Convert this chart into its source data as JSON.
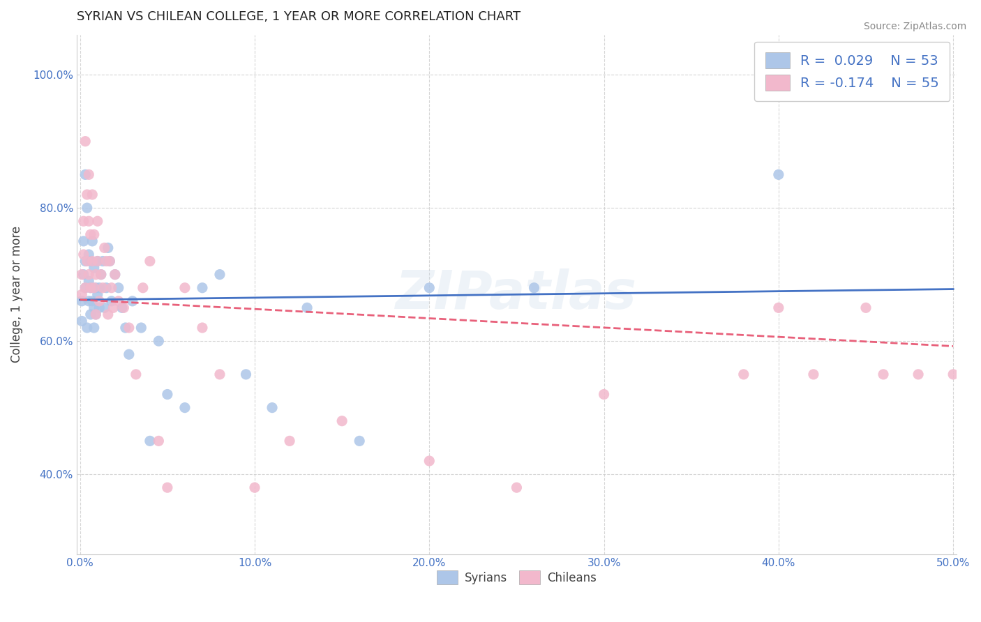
{
  "title": "SYRIAN VS CHILEAN COLLEGE, 1 YEAR OR MORE CORRELATION CHART",
  "source": "Source: ZipAtlas.com",
  "xlabel": "",
  "ylabel": "College, 1 year or more",
  "xlim": [
    -0.002,
    0.502
  ],
  "ylim": [
    0.28,
    1.06
  ],
  "xtick_labels": [
    "0.0%",
    "10.0%",
    "20.0%",
    "30.0%",
    "40.0%",
    "50.0%"
  ],
  "xtick_vals": [
    0.0,
    0.1,
    0.2,
    0.3,
    0.4,
    0.5
  ],
  "ytick_labels": [
    "40.0%",
    "60.0%",
    "80.0%",
    "100.0%"
  ],
  "ytick_vals": [
    0.4,
    0.6,
    0.8,
    1.0
  ],
  "blue_color": "#adc6e8",
  "pink_color": "#f2b8cc",
  "blue_line_color": "#4472c4",
  "pink_line_color": "#e8607a",
  "legend_R1": "R =  0.029",
  "legend_N1": "N = 53",
  "legend_R2": "R = -0.174",
  "legend_N2": "N = 55",
  "legend_label1": "Syrians",
  "legend_label2": "Chileans",
  "watermark": "ZIPatlas",
  "blue_R": 0.029,
  "pink_R": -0.174,
  "blue_N": 53,
  "pink_N": 55,
  "syrians_x": [
    0.001,
    0.001,
    0.002,
    0.002,
    0.003,
    0.003,
    0.003,
    0.004,
    0.004,
    0.005,
    0.005,
    0.005,
    0.006,
    0.006,
    0.006,
    0.007,
    0.007,
    0.008,
    0.008,
    0.008,
    0.009,
    0.009,
    0.01,
    0.01,
    0.011,
    0.011,
    0.012,
    0.013,
    0.014,
    0.015,
    0.016,
    0.017,
    0.018,
    0.02,
    0.022,
    0.024,
    0.026,
    0.028,
    0.03,
    0.035,
    0.04,
    0.045,
    0.05,
    0.06,
    0.07,
    0.08,
    0.095,
    0.11,
    0.13,
    0.16,
    0.2,
    0.26,
    0.4
  ],
  "syrians_y": [
    0.66,
    0.63,
    0.7,
    0.75,
    0.85,
    0.68,
    0.72,
    0.8,
    0.62,
    0.66,
    0.73,
    0.69,
    0.64,
    0.72,
    0.68,
    0.75,
    0.66,
    0.71,
    0.65,
    0.62,
    0.68,
    0.64,
    0.72,
    0.67,
    0.65,
    0.68,
    0.7,
    0.72,
    0.65,
    0.68,
    0.74,
    0.72,
    0.66,
    0.7,
    0.68,
    0.65,
    0.62,
    0.58,
    0.66,
    0.62,
    0.45,
    0.6,
    0.52,
    0.5,
    0.68,
    0.7,
    0.55,
    0.5,
    0.65,
    0.45,
    0.68,
    0.68,
    0.85
  ],
  "chileans_x": [
    0.001,
    0.001,
    0.002,
    0.002,
    0.003,
    0.003,
    0.004,
    0.004,
    0.005,
    0.005,
    0.005,
    0.006,
    0.006,
    0.007,
    0.007,
    0.008,
    0.008,
    0.009,
    0.009,
    0.01,
    0.01,
    0.011,
    0.012,
    0.013,
    0.014,
    0.015,
    0.016,
    0.017,
    0.018,
    0.019,
    0.02,
    0.022,
    0.025,
    0.028,
    0.032,
    0.036,
    0.04,
    0.045,
    0.05,
    0.06,
    0.07,
    0.08,
    0.1,
    0.12,
    0.15,
    0.2,
    0.25,
    0.3,
    0.38,
    0.4,
    0.42,
    0.45,
    0.46,
    0.48,
    0.5
  ],
  "chileans_y": [
    0.7,
    0.67,
    0.78,
    0.73,
    0.9,
    0.68,
    0.82,
    0.72,
    0.78,
    0.7,
    0.85,
    0.76,
    0.68,
    0.82,
    0.72,
    0.76,
    0.68,
    0.7,
    0.64,
    0.72,
    0.78,
    0.66,
    0.7,
    0.68,
    0.74,
    0.72,
    0.64,
    0.72,
    0.68,
    0.65,
    0.7,
    0.66,
    0.65,
    0.62,
    0.55,
    0.68,
    0.72,
    0.45,
    0.38,
    0.68,
    0.62,
    0.55,
    0.38,
    0.45,
    0.48,
    0.42,
    0.38,
    0.52,
    0.55,
    0.65,
    0.55,
    0.65,
    0.55,
    0.55,
    0.55
  ]
}
